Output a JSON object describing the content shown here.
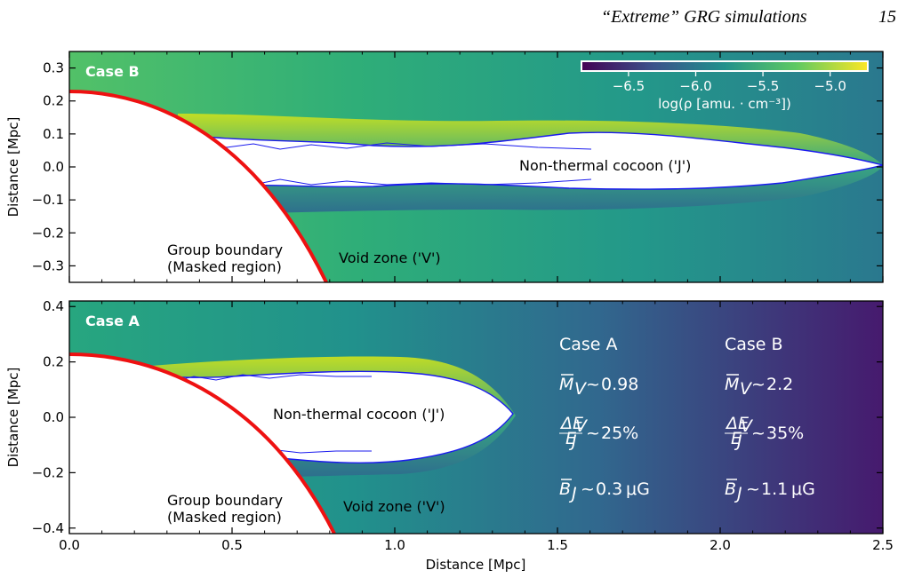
{
  "header": {
    "running_title": "“Extreme” GRG simulations",
    "page_number": "15"
  },
  "colorbar": {
    "label": "log(ρ [amu. · cm⁻³])",
    "ticks": [
      "−6.5",
      "−6.0",
      "−5.5",
      "−5.0"
    ],
    "tick_values": [
      -6.5,
      -6.0,
      -5.5,
      -5.0
    ],
    "range": [
      -6.85,
      -4.72
    ]
  },
  "colors": {
    "boundary": "#ee1111",
    "contour": "#1a1aee",
    "masked": "#ffffff"
  },
  "chart_data": [
    {
      "type": "heatmap",
      "panel": "top",
      "case_label": "Case B",
      "ylabel": "Distance [Mpc]",
      "xlim": [
        0,
        2.5
      ],
      "ylim": [
        -0.35,
        0.35
      ],
      "yticks": [
        0.3,
        0.2,
        0.1,
        0.0,
        -0.1,
        -0.2,
        -0.3
      ],
      "ytick_labels": [
        "0.3",
        "0.2",
        "0.1",
        "0.0",
        "−0.1",
        "−0.2",
        "−0.3"
      ],
      "group_boundary_radius_mpc": 0.23,
      "annotations": {
        "cocoon": "Non-thermal cocoon ('J')",
        "boundary_line1": "Group boundary",
        "boundary_line2": "(Masked region)",
        "void": "Void zone ('V')"
      }
    },
    {
      "type": "heatmap",
      "panel": "bottom",
      "case_label": "Case A",
      "xlabel": "Distance [Mpc]",
      "ylabel": "Distance [Mpc]",
      "xlim": [
        0,
        2.5
      ],
      "ylim": [
        -0.42,
        0.42
      ],
      "xticks": [
        0.0,
        0.5,
        1.0,
        1.5,
        2.0,
        2.5
      ],
      "xtick_labels": [
        "0.0",
        "0.5",
        "1.0",
        "1.5",
        "2.0",
        "2.5"
      ],
      "yticks": [
        0.4,
        0.2,
        0.0,
        -0.2,
        -0.4
      ],
      "ytick_labels": [
        "0.4",
        "0.2",
        "0.0",
        "−0.2",
        "−0.4"
      ],
      "group_boundary_radius_mpc": 0.23,
      "annotations": {
        "cocoon": "Non-thermal cocoon ('J')",
        "boundary_line1": "Group boundary",
        "boundary_line2": "(Masked region)",
        "void": "Void zone ('V')"
      },
      "stats_table": {
        "columns": [
          "Case A",
          "Case B"
        ],
        "mach_v": [
          "0.98",
          "2.2"
        ],
        "energy_frac": [
          "25%",
          "35%"
        ],
        "b_field": [
          "0.3",
          "1.1"
        ],
        "b_unit": "μG"
      }
    }
  ]
}
